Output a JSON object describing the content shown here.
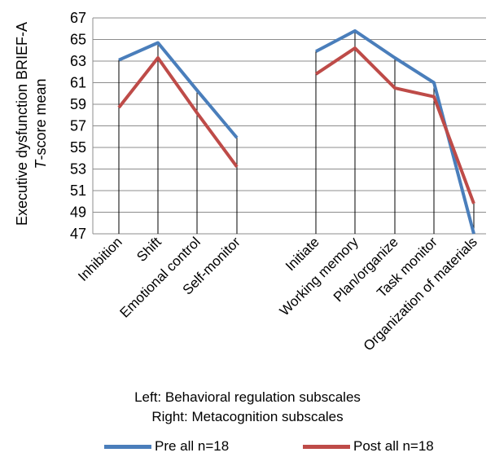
{
  "chart_data": {
    "type": "line",
    "ylabel_line1": "Executive dysfunction BRIEF-A",
    "ylabel_line2_italic": "T",
    "ylabel_line2_rest": "-score mean",
    "ylim": [
      47,
      67
    ],
    "yticks": [
      "47",
      "49",
      "51",
      "53",
      "55",
      "57",
      "59",
      "61",
      "63",
      "65",
      "67"
    ],
    "grid": true,
    "groups": [
      {
        "categories": [
          "Inhibition",
          "Shift",
          "Emotional control",
          "Self-monitor"
        ],
        "series": [
          {
            "name": "Pre all n=18",
            "values": [
              63.1,
              64.7,
              60.3,
              55.9
            ]
          },
          {
            "name": "Post all n=18",
            "values": [
              58.7,
              63.3,
              58.2,
              53.2
            ]
          }
        ]
      },
      {
        "categories": [
          "Initiate",
          "Working memory",
          "Plan/organize",
          "Task monitor",
          "Organization of materials"
        ],
        "series": [
          {
            "name": "Pre all n=18",
            "values": [
              63.9,
              65.8,
              63.3,
              61.0,
              47.0
            ]
          },
          {
            "name": "Post all n=18",
            "values": [
              61.8,
              64.2,
              60.5,
              59.7,
              49.8
            ]
          }
        ]
      }
    ],
    "legend": [
      {
        "name": "Pre all n=18",
        "color": "#4a7ebb"
      },
      {
        "name": "Post all n=18",
        "color": "#be4b48"
      }
    ],
    "legend_placement": "bottom",
    "footnote_line1": "Left: Behavioral regulation subscales",
    "footnote_line2": "Right: Metacognition subscales"
  }
}
